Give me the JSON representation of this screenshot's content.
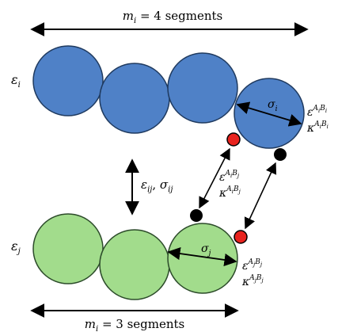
{
  "colors": {
    "blue_fill": "#4F81C7",
    "blue_stroke": "#1F3A5F",
    "green_fill": "#A2DC8C",
    "green_stroke": "#2C4B2A",
    "red_site": "#E8231E",
    "black_site": "#000000",
    "arrow": "#000000"
  },
  "chain_i": {
    "top_label": "m_i = 4 segments",
    "epsilon_label": "ε_i",
    "sigma_label": "σ_i",
    "assoc_epsilon": "ε^{A_iB_i}",
    "assoc_kappa": "κ^{A_iB_i}",
    "segments": 4
  },
  "chain_j": {
    "bottom_label": "m_i = 3 segments",
    "epsilon_label": "ε_j",
    "sigma_label": "σ_j",
    "assoc_epsilon": "ε^{A_jB_j}",
    "assoc_kappa": "κ^{A_jB_j}",
    "segments": 3
  },
  "cross_params": {
    "dispersion": "ε_ij, σ_ij",
    "assoc_epsilon": "ε^{A_iB_j}",
    "assoc_kappa": "κ^{A_iB_j}"
  }
}
